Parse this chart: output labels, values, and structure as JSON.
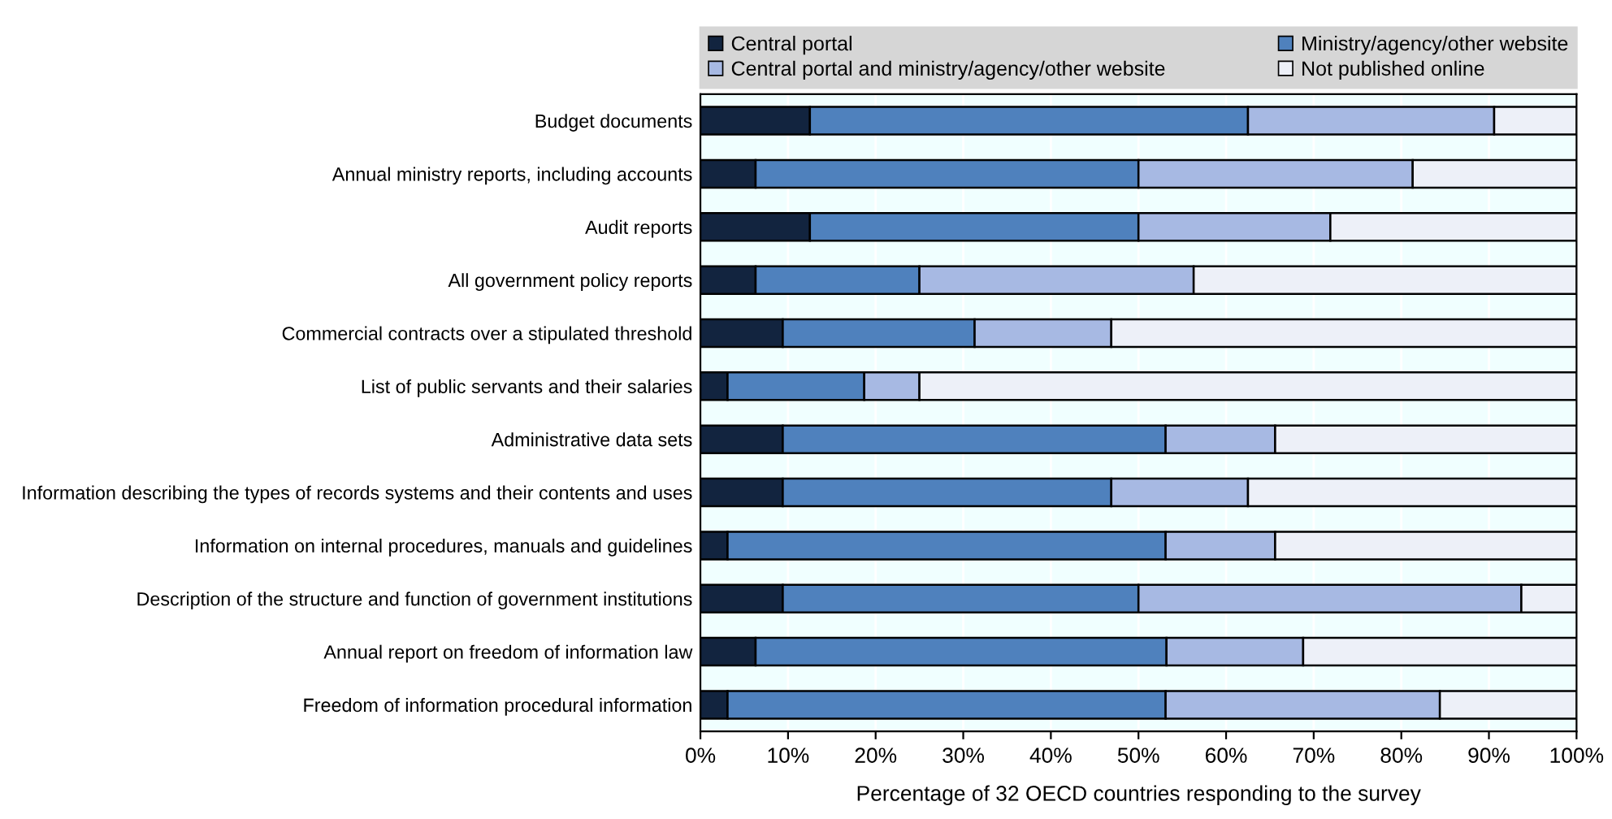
{
  "chart_data": {
    "type": "bar",
    "orientation": "horizontal",
    "stacked": true,
    "categories": [
      "Budget documents",
      "Annual ministry reports, including accounts",
      "Audit reports",
      "All government policy reports",
      "Commercial contracts over a stipulated threshold",
      "List of public servants and their salaries",
      "Administrative data sets",
      "Information describing the types of records systems and their contents and uses",
      "Information on internal procedures, manuals and guidelines",
      "Description of the structure and function of government institutions",
      "Annual report on freedom of information law",
      "Freedom of information procedural information"
    ],
    "series": [
      {
        "name": "Central portal",
        "color": "#12243f",
        "values": [
          12.5,
          6.3,
          12.5,
          6.3,
          9.4,
          3.1,
          9.4,
          9.4,
          3.1,
          9.4,
          6.3,
          3.1
        ]
      },
      {
        "name": "Ministry/agency/other website",
        "color": "#4f81bd",
        "values": [
          50.0,
          43.7,
          37.5,
          18.7,
          21.9,
          15.6,
          43.7,
          37.5,
          50.0,
          40.6,
          46.9,
          50.0
        ]
      },
      {
        "name": "Central portal and ministry/agency/other website",
        "color": "#a7b9e3",
        "values": [
          28.1,
          31.3,
          21.9,
          31.3,
          15.6,
          6.3,
          12.5,
          15.6,
          12.5,
          43.7,
          15.6,
          31.3
        ]
      },
      {
        "name": "Not published online",
        "color": "#edf0f8",
        "values": [
          9.4,
          18.7,
          28.1,
          43.7,
          53.1,
          75.0,
          34.4,
          37.5,
          34.4,
          6.3,
          31.2,
          15.6
        ]
      }
    ],
    "xlabel": "Percentage of 32 OECD countries responding to the survey",
    "xlim": [
      0,
      100
    ],
    "xticks": [
      {
        "value": 0,
        "label": "0%"
      },
      {
        "value": 10,
        "label": "10%"
      },
      {
        "value": 20,
        "label": "20%"
      },
      {
        "value": 30,
        "label": "30%"
      },
      {
        "value": 40,
        "label": "40%"
      },
      {
        "value": 50,
        "label": "50%"
      },
      {
        "value": 60,
        "label": "60%"
      },
      {
        "value": 70,
        "label": "70%"
      },
      {
        "value": 80,
        "label": "80%"
      },
      {
        "value": 90,
        "label": "90%"
      },
      {
        "value": 100,
        "label": "100%"
      }
    ],
    "grid": "x",
    "legend": "top"
  }
}
